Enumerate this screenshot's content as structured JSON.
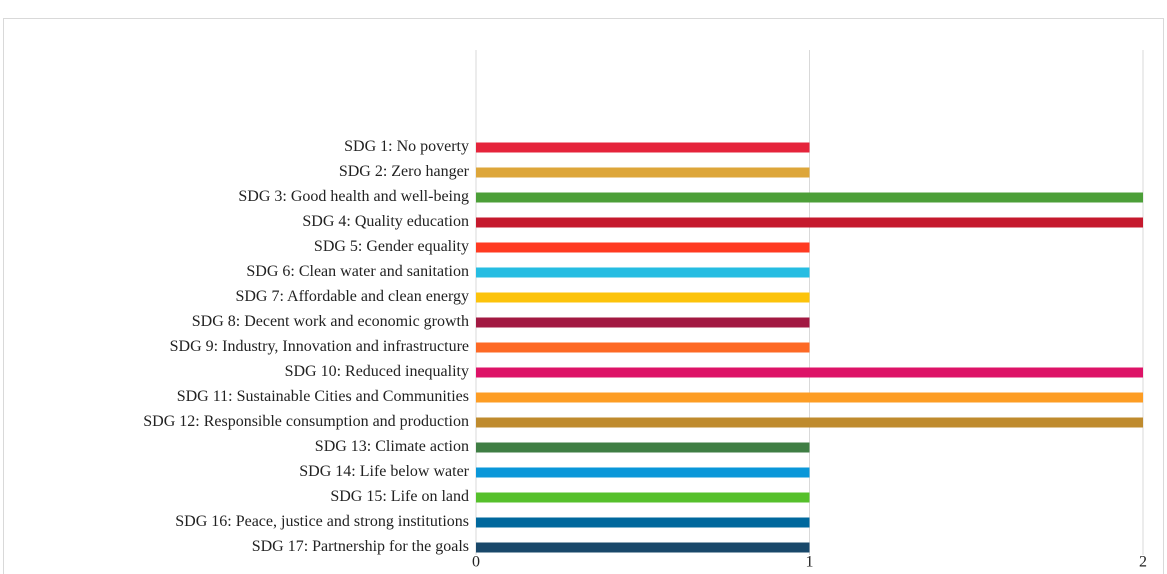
{
  "chart_data": {
    "type": "bar",
    "orientation": "horizontal",
    "categories": [
      "SDG 1: No poverty",
      "SDG 2: Zero hanger",
      "SDG 3: Good health and well-being",
      "SDG 4: Quality education",
      "SDG 5: Gender equality",
      "SDG 6: Clean water and sanitation",
      "SDG 7: Affordable and clean energy",
      "SDG 8: Decent work and economic growth",
      "SDG 9: Industry, Innovation and infrastructure",
      "SDG 10: Reduced inequality",
      "SDG 11: Sustainable Cities and Communities",
      "SDG 12: Responsible consumption and production",
      "SDG 13: Climate action",
      "SDG 14: Life below water",
      "SDG 15: Life on land",
      "SDG 16: Peace, justice and strong institutions",
      "SDG 17: Partnership for the goals"
    ],
    "values": [
      1,
      1,
      2,
      2,
      1,
      1,
      1,
      1,
      1,
      2,
      2,
      2,
      1,
      1,
      1,
      1,
      1
    ],
    "colors": [
      "#e5243b",
      "#dda63a",
      "#4c9f38",
      "#c5192d",
      "#ff3a21",
      "#26bde2",
      "#fcc30b",
      "#a21942",
      "#fd6925",
      "#dd1367",
      "#fd9d24",
      "#bf8b2e",
      "#3f7e44",
      "#0a97d9",
      "#56c02b",
      "#00689d",
      "#19486a"
    ],
    "xlim": [
      0,
      2
    ],
    "xticks": [
      0,
      1,
      2
    ],
    "grid": true
  }
}
